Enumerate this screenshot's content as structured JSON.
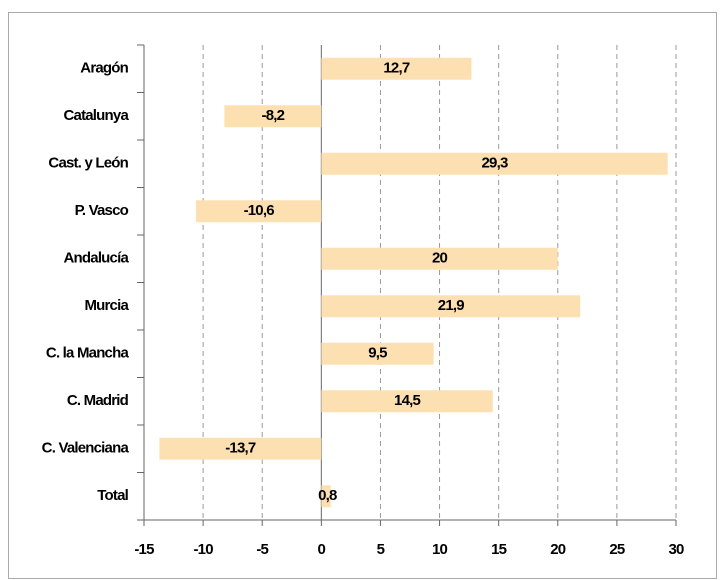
{
  "chart_data": {
    "type": "bar",
    "orientation": "horizontal",
    "categories": [
      "Aragón",
      "Catalunya",
      "Cast. y León",
      "P. Vasco",
      "Andalucía",
      "Murcia",
      "C. la Mancha",
      "C. Madrid",
      "C. Valenciana",
      "Total"
    ],
    "values": [
      12.7,
      -8.2,
      29.3,
      -10.6,
      20,
      21.9,
      9.5,
      14.5,
      -13.7,
      0.8
    ],
    "value_labels": [
      "12,7",
      "-8,2",
      "29,3",
      "-10,6",
      "20",
      "21,9",
      "9,5",
      "14,5",
      "-13,7",
      "0,8"
    ],
    "color": "#fde0b2",
    "xlim": [
      -15,
      30
    ],
    "xticks": [
      -15,
      -10,
      -5,
      0,
      5,
      10,
      15,
      20,
      25,
      30
    ],
    "grid": true
  }
}
